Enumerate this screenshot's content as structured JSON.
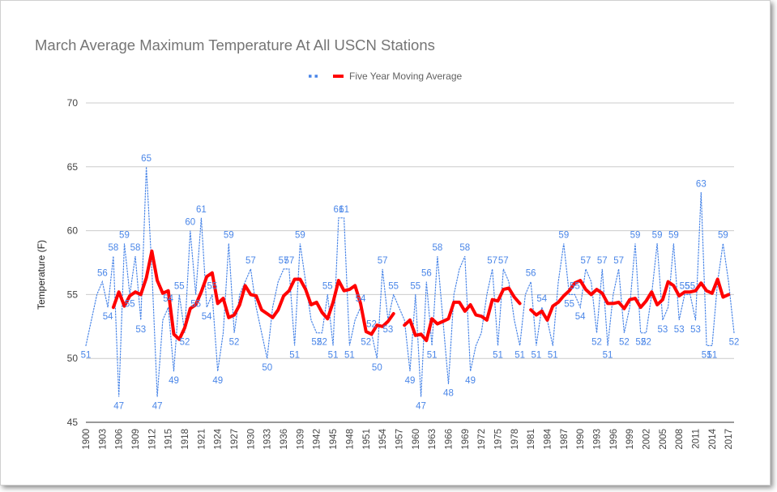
{
  "chart_data": {
    "type": "line",
    "title": "March Average Maximum Temperature At All USCN Stations",
    "xlabel": "",
    "ylabel": "Temperature (F)",
    "ylim": [
      45,
      70
    ],
    "yticks": [
      45,
      50,
      55,
      60,
      65,
      70
    ],
    "grid": true,
    "legend_position": "top",
    "x": [
      1900,
      1901,
      1902,
      1903,
      1904,
      1905,
      1906,
      1907,
      1908,
      1909,
      1910,
      1911,
      1912,
      1913,
      1914,
      1915,
      1916,
      1917,
      1918,
      1919,
      1920,
      1921,
      1922,
      1923,
      1924,
      1925,
      1926,
      1927,
      1928,
      1929,
      1930,
      1931,
      1932,
      1933,
      1934,
      1935,
      1936,
      1937,
      1938,
      1939,
      1940,
      1941,
      1942,
      1943,
      1944,
      1945,
      1946,
      1947,
      1948,
      1949,
      1950,
      1951,
      1952,
      1953,
      1954,
      1955,
      1956,
      1957,
      1958,
      1959,
      1960,
      1961,
      1962,
      1963,
      1964,
      1965,
      1966,
      1967,
      1968,
      1969,
      1970,
      1971,
      1972,
      1973,
      1974,
      1975,
      1976,
      1977,
      1978,
      1979,
      1980,
      1981,
      1982,
      1983,
      1984,
      1985,
      1986,
      1987,
      1988,
      1989,
      1990,
      1991,
      1992,
      1993,
      1994,
      1995,
      1996,
      1997,
      1998,
      1999,
      2000,
      2001,
      2002,
      2003,
      2004,
      2005,
      2006,
      2007,
      2008,
      2009,
      2010,
      2011,
      2012,
      2013,
      2014,
      2015,
      2016,
      2017,
      2018
    ],
    "x_tick_labels": [
      "1900",
      "1903",
      "1906",
      "1909",
      "1912",
      "1915",
      "1918",
      "1921",
      "1924",
      "1927",
      "1930",
      "1933",
      "1936",
      "1939",
      "1942",
      "1945",
      "1948",
      "1951",
      "1954",
      "1957",
      "1960",
      "1963",
      "1966",
      "1969",
      "1972",
      "1975",
      "1978",
      "1981",
      "1984",
      "1987",
      "1990",
      "1993",
      "1996",
      "1999",
      "2002",
      "2005",
      "2008",
      "2011",
      "2014",
      "2017"
    ],
    "series": [
      {
        "name": "",
        "color": "#4a86e8",
        "style": "dotted",
        "data_labels": true,
        "values": [
          51,
          53,
          55,
          56,
          54,
          58,
          47,
          59,
          55,
          58,
          53,
          65,
          57,
          47,
          53,
          54,
          49,
          55,
          52,
          60,
          55,
          61,
          54,
          55,
          49,
          52,
          59,
          52,
          55,
          56,
          57,
          54,
          52,
          50,
          54,
          56,
          57,
          57,
          51,
          59,
          56,
          53,
          52,
          52,
          55,
          51,
          61,
          61,
          51,
          53,
          54,
          52,
          52,
          50,
          57,
          53,
          55,
          54,
          53,
          49,
          55,
          47,
          56,
          51,
          58,
          53,
          48,
          55,
          57,
          58,
          49,
          51,
          52,
          55,
          57,
          51,
          57,
          56,
          53,
          51,
          55,
          56,
          51,
          54,
          53,
          51,
          56,
          59,
          55,
          55,
          54,
          57,
          56,
          52,
          57,
          51,
          55,
          57,
          52,
          54,
          59,
          52,
          52,
          55,
          59,
          53,
          54,
          59,
          53,
          55,
          55,
          53,
          63,
          51,
          51,
          56,
          59,
          56,
          52
        ]
      },
      {
        "name": "Five Year Moving Average",
        "color": "#ff0000",
        "style": "solid",
        "values": [
          null,
          null,
          null,
          null,
          null,
          54.0,
          55.2,
          54.1,
          54.9,
          55.2,
          55.0,
          56.3,
          58.4,
          56.1,
          55.1,
          55.3,
          51.9,
          51.5,
          52.4,
          53.9,
          54.2,
          55.2,
          56.4,
          56.7,
          54.3,
          54.7,
          53.2,
          53.4,
          54.2,
          55.7,
          55.0,
          54.9,
          53.8,
          53.5,
          53.2,
          53.8,
          54.9,
          55.3,
          56.2,
          56.2,
          55.4,
          54.2,
          54.4,
          53.6,
          53.1,
          54.4,
          56.1,
          55.3,
          55.4,
          55.7,
          54.3,
          52.1,
          51.9,
          52.6,
          52.5,
          52.9,
          53.5,
          null,
          52.6,
          53.0,
          51.8,
          51.9,
          51.4,
          53.1,
          52.7,
          52.9,
          53.1,
          54.4,
          54.4,
          53.7,
          54.2,
          53.4,
          53.3,
          53.0,
          54.6,
          54.5,
          55.4,
          55.5,
          54.8,
          54.3,
          null,
          53.8,
          53.4,
          53.7,
          53.0,
          54.1,
          54.4,
          54.9,
          55.3,
          55.9,
          56.1,
          55.4,
          55.0,
          55.4,
          55.1,
          54.3,
          54.3,
          54.4,
          53.9,
          54.6,
          54.7,
          54.0,
          54.5,
          55.2,
          54.2,
          54.6,
          56.0,
          55.7,
          54.9,
          55.2,
          55.2,
          55.3,
          55.9,
          55.3,
          55.1,
          56.2,
          54.8,
          55.0,
          null
        ]
      }
    ]
  }
}
